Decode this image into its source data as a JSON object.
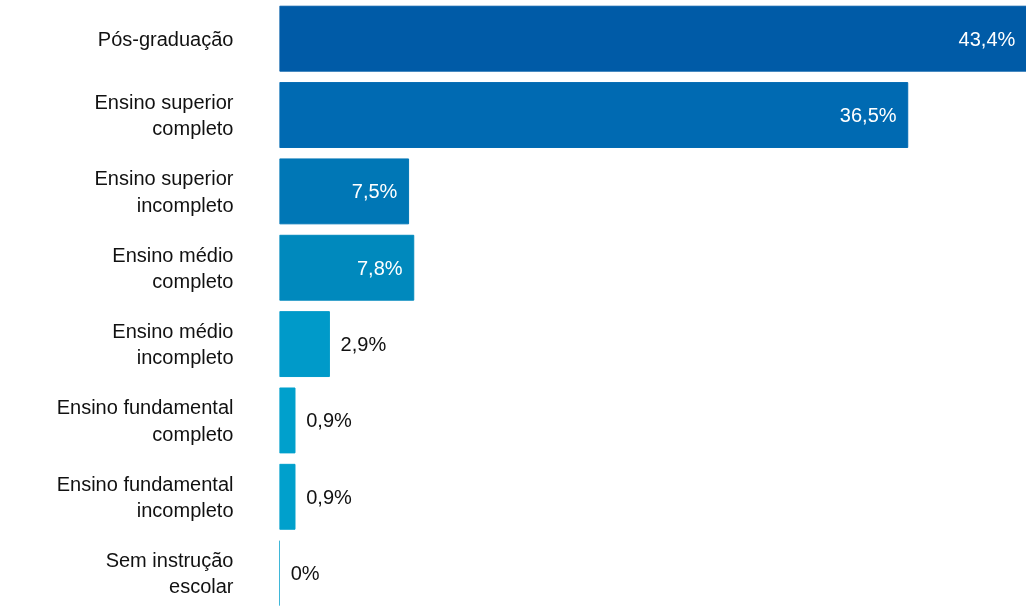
{
  "chart_data": {
    "type": "bar",
    "orientation": "horizontal",
    "categories": [
      "Pós-graduação",
      "Ensino superior completo",
      "Ensino superior incompleto",
      "Ensino médio completo",
      "Ensino médio incompleto",
      "Ensino fundamental completo",
      "Ensino fundamental incompleto",
      "Sem instrução escolar"
    ],
    "values": [
      43.4,
      36.5,
      7.5,
      7.8,
      2.9,
      0.9,
      0.9,
      0
    ],
    "colors": [
      "#005ba7",
      "#006ab2",
      "#0077b6",
      "#0089bd",
      "#009ac9",
      "#00a0cc",
      "#00a0cc",
      "#00a0cc"
    ],
    "value_labels": [
      "43,4%",
      "36,5%",
      "7,5%",
      "7,8%",
      "2,9%",
      "0,9%",
      "0,9%",
      "0%"
    ],
    "grid": false
  }
}
